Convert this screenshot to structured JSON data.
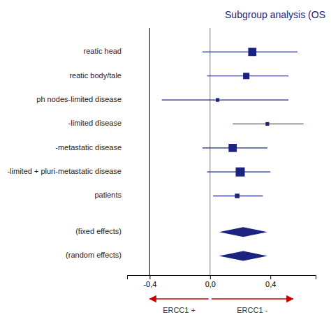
{
  "chart_data": {
    "type": "forest",
    "title": "Subgroup analysis (OS",
    "color": "#1a237e",
    "categories": [
      "reatic head",
      "reatic body/tale",
      "ph nodes-limited disease",
      "-limited disease",
      "-metastatic disease",
      "-limited + pluri-metastatic disease",
      "patients"
    ],
    "values": [
      0.28,
      0.24,
      0.05,
      0.38,
      0.15,
      0.2,
      0.18
    ],
    "ci_lower": [
      -0.05,
      -0.02,
      -0.32,
      0.15,
      -0.05,
      -0.02,
      0.02
    ],
    "ci_upper": [
      0.58,
      0.52,
      0.52,
      0.62,
      0.38,
      0.4,
      0.35
    ],
    "sizes": [
      9,
      7,
      4,
      4,
      9,
      10,
      5
    ],
    "summary_labels": [
      "(fixed effects)",
      "(random effects)"
    ],
    "summary_centers": [
      0.22,
      0.22
    ],
    "summary_half_widths": [
      0.16,
      0.16
    ],
    "xlim": [
      -0.55,
      0.7
    ],
    "xticks": [
      {
        "value": -0.4,
        "label": "-0,4"
      },
      {
        "value": 0.0,
        "label": "0,0"
      },
      {
        "value": 0.4,
        "label": "0,4"
      }
    ],
    "reference_line": 0.0,
    "border_line": -0.4,
    "arrows": [
      {
        "label": "ERCC1 +",
        "from": -0.01,
        "to": -0.4,
        "color": "#cc0000"
      },
      {
        "label": "ERCC1 -",
        "from": 0.01,
        "to": 0.55,
        "color": "#cc0000"
      }
    ],
    "grid": false
  }
}
